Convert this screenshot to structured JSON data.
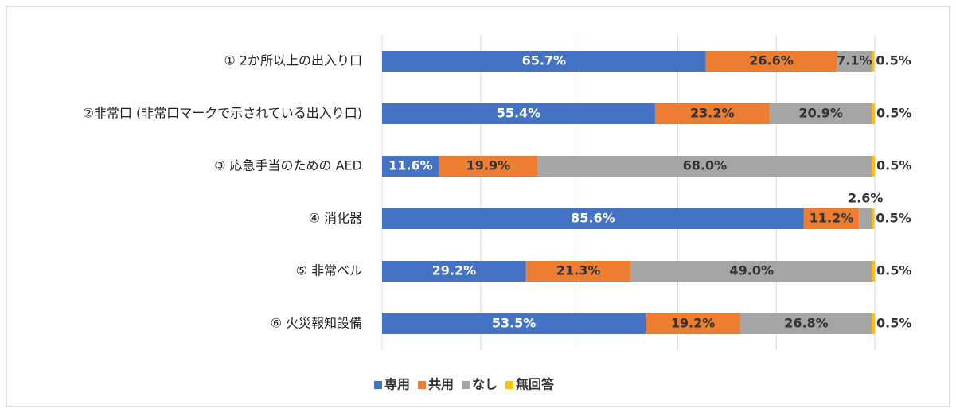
{
  "chart_data": {
    "type": "stacked-bar-horizontal",
    "categories": [
      "① 2か所以上の出入り口",
      "②非常口 (非常口マークで示されている出入り口)",
      "③ 応急手当のための AED",
      "④ 消化器",
      "⑤ 非常ベル",
      "⑥ 火災報知設備"
    ],
    "series": [
      {
        "name": "専用",
        "color": "#4472c4",
        "values": [
          65.7,
          55.4,
          11.6,
          85.6,
          29.2,
          53.5
        ],
        "value_labels": [
          "65.7%",
          "55.4%",
          "11.6%",
          "85.6%",
          "29.2%",
          "53.5%"
        ]
      },
      {
        "name": "共用",
        "color": "#ed7d31",
        "values": [
          26.6,
          23.2,
          19.9,
          11.2,
          21.3,
          19.2
        ],
        "value_labels": [
          "26.6%",
          "23.2%",
          "19.9%",
          "11.2%",
          "21.3%",
          "19.2%"
        ]
      },
      {
        "name": "なし",
        "color": "#a5a5a5",
        "values": [
          7.1,
          20.9,
          68.0,
          2.6,
          49.0,
          26.8
        ],
        "value_labels": [
          "7.1%",
          "20.9%",
          "68.0%",
          "2.6%",
          "49.0%",
          "26.8%"
        ]
      },
      {
        "name": "無回答",
        "color": "#ffc000",
        "values": [
          0.5,
          0.5,
          0.5,
          0.5,
          0.5,
          0.5
        ],
        "value_labels": [
          "0.5%",
          "0.5%",
          "0.5%",
          "0.5%",
          "0.5%",
          "0.5%"
        ]
      }
    ],
    "xlim": [
      0,
      100
    ],
    "xticks": [
      0,
      20,
      40,
      60,
      80,
      100
    ],
    "grid": true,
    "legend": "bottom"
  }
}
